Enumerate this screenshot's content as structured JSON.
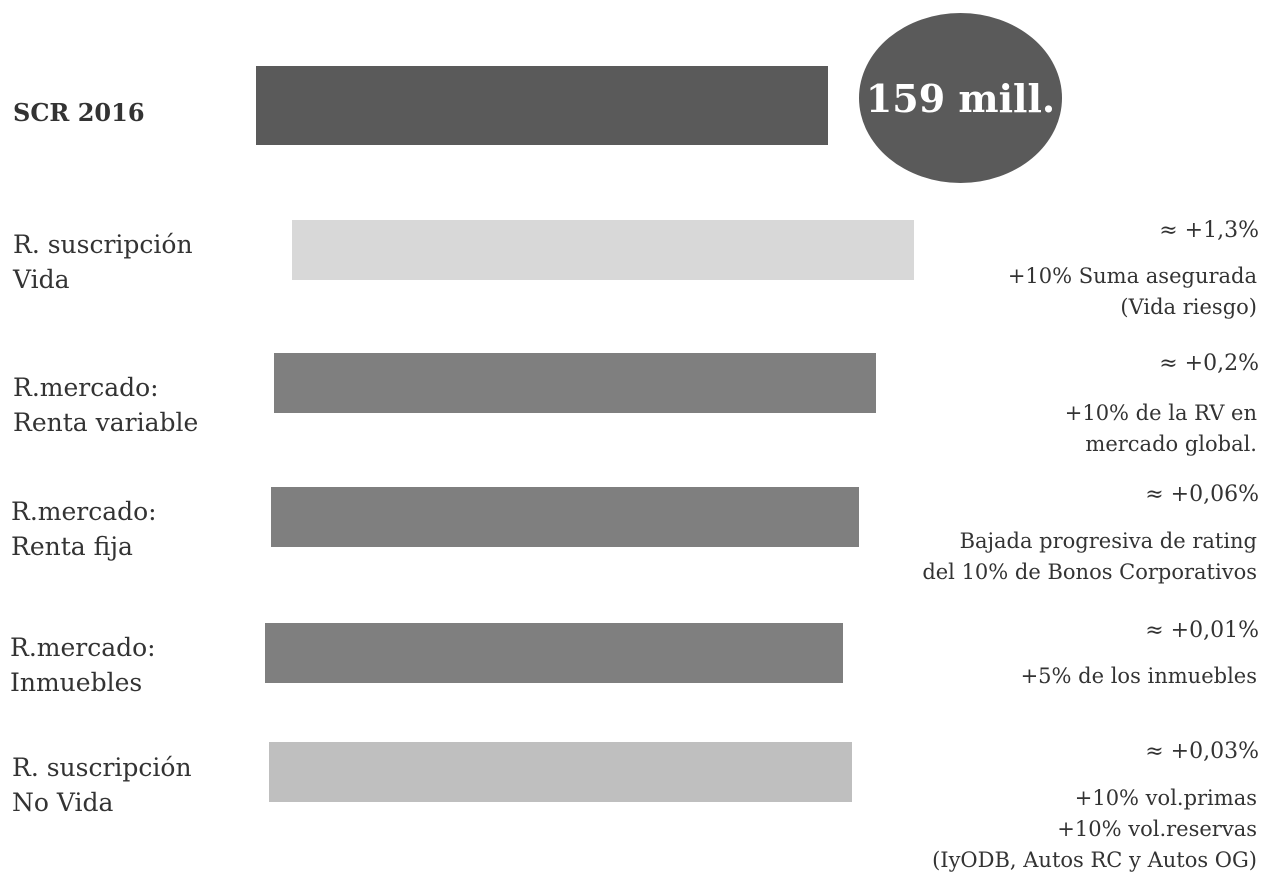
{
  "chart_data": {
    "type": "bar",
    "orientation": "horizontal",
    "categories": [
      "SCR 2016",
      "R. suscripción\nVida",
      "R.mercado:\nRenta variable",
      "R.mercado:\nRenta fija",
      "R.mercado:\nInmuebles",
      "R. suscripción\nNo Vida"
    ],
    "colors": [
      "#5a5a5a",
      "#d8d8d8",
      "#7f7f7f",
      "#7f7f7f",
      "#7f7f7f",
      "#bfbfbf"
    ],
    "scr_total": "159 mill.",
    "changes": [
      "",
      "≈ +1,3%",
      "≈ +0,2%",
      "≈ +0,06%",
      "≈ +0,01%",
      "≈ +0,03%"
    ],
    "notes": [
      "",
      "+10% Suma asegurada\n(Vida riesgo)",
      "+10% de la RV en\nmercado global.",
      "Bajada progresiva de rating\ndel 10% de Bonos Corporativos",
      "+5% de los inmuebles",
      "+10% vol.primas\n+10% vol.reservas\n(IyODB, Autos RC y Autos OG)"
    ]
  }
}
